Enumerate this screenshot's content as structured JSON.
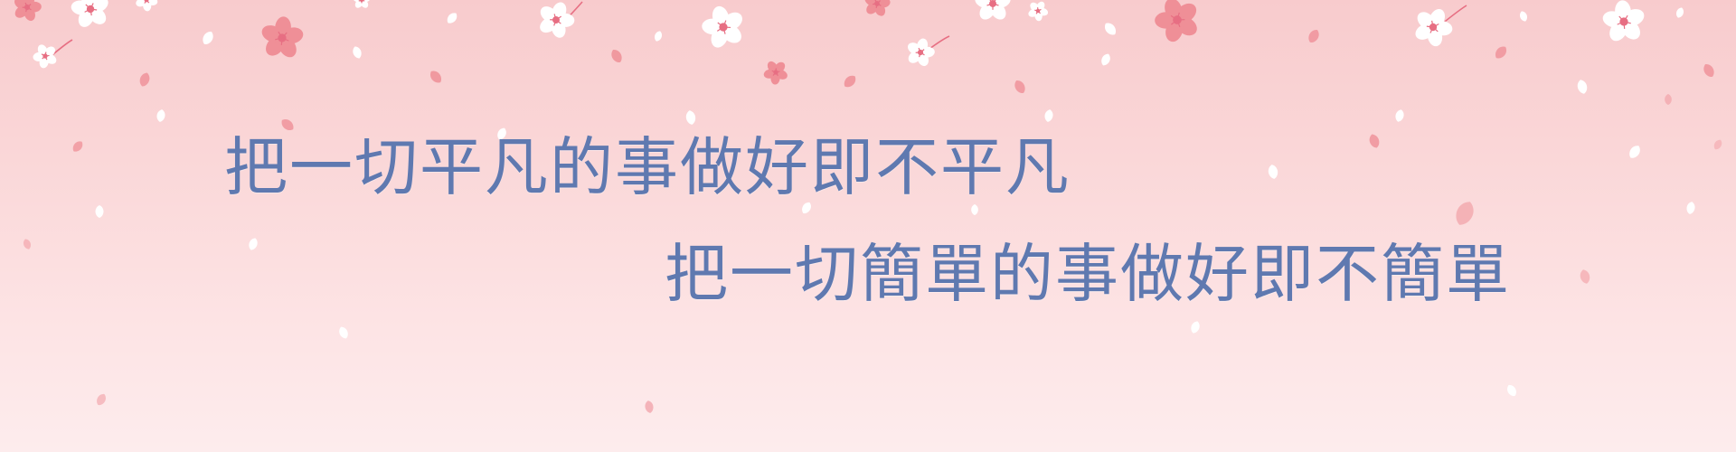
{
  "banner": {
    "line1": "把一切平凡的事做好即不平凡",
    "line2": "把一切簡單的事做好即不簡單"
  },
  "colors": {
    "background_top": "#f8cbcd",
    "background_bottom": "#fdeced",
    "text": "#5f79b0",
    "petal_white": "#ffffff",
    "petal_pink": "#ef8f97",
    "flower_center": "#e76f83"
  },
  "icons": {
    "flower": "sakura-flower-icon",
    "petal": "falling-petal-icon"
  }
}
